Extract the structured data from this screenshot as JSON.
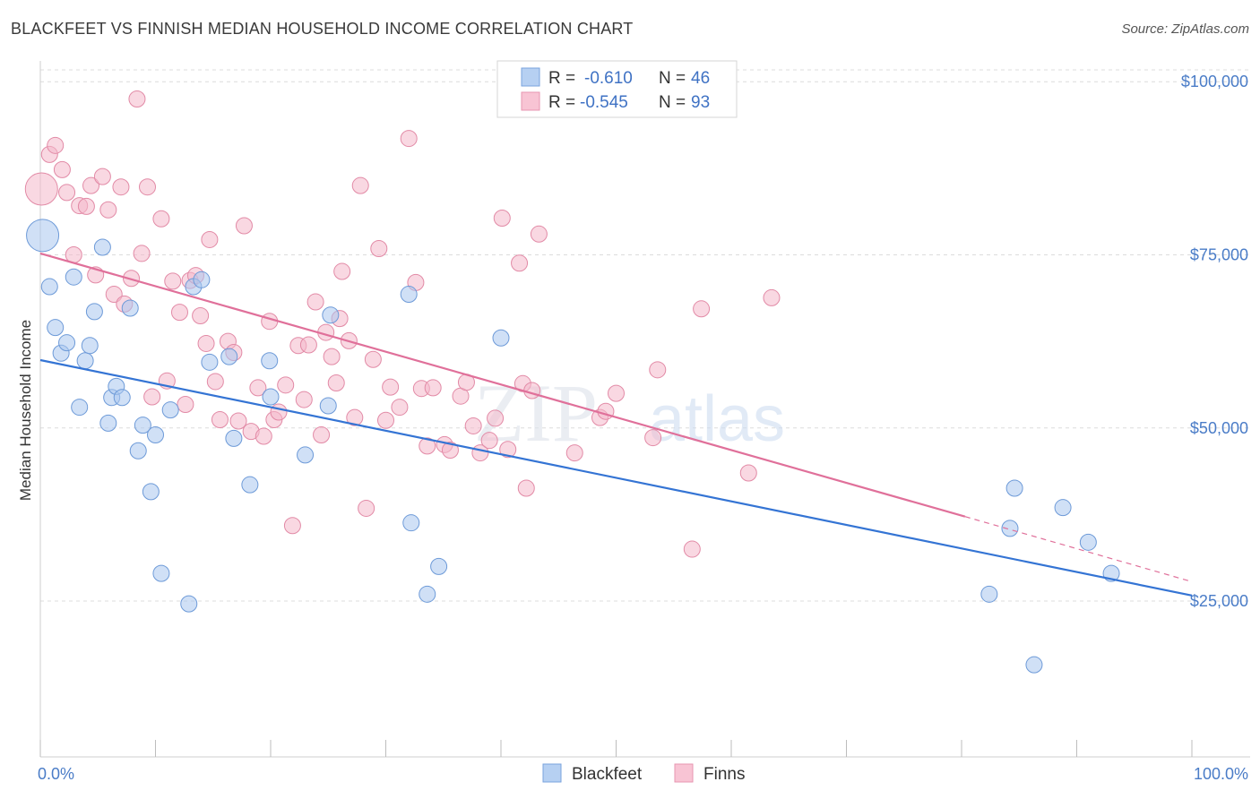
{
  "title": "BLACKFEET VS FINNISH MEDIAN HOUSEHOLD INCOME CORRELATION CHART",
  "source": "Source: ZipAtlas.com",
  "watermark": "ZIPatlas",
  "colors": {
    "blue_fill": "#a9c6ef",
    "blue_stroke": "#6d9ad8",
    "blue_line": "#3474d4",
    "pink_fill": "#f4b8cb",
    "pink_stroke": "#e28aa6",
    "pink_line": "#e0709a",
    "grid": "#dcdcdc",
    "tick_text": "#4a7cc7"
  },
  "legend": {
    "rows": [
      {
        "r_label": "R =",
        "r_value": "-0.610",
        "n_label": "N =",
        "n_value": "46"
      },
      {
        "r_label": "R =",
        "r_value": "-0.545",
        "n_label": "N =",
        "n_value": "93"
      }
    ]
  },
  "chart_data": {
    "type": "scatter",
    "title": "BLACKFEET VS FINNISH MEDIAN HOUSEHOLD INCOME CORRELATION CHART",
    "xlabel": "",
    "ylabel": "Median Household Income",
    "xlim": [
      0,
      100
    ],
    "ylim": [
      2500,
      103000
    ],
    "x_tick_labels": [
      "0.0%",
      "100.0%"
    ],
    "y_ticks": [
      25000,
      50000,
      75000,
      100000
    ],
    "y_tick_labels": [
      "$25,000",
      "$50,000",
      "$75,000",
      "$100,000"
    ],
    "grid": true,
    "legend_position": "top-center",
    "series": [
      {
        "name": "Blackfeet",
        "r": -0.61,
        "n": 46,
        "trend": {
          "x0": 0,
          "y0": 59800,
          "x1": 100,
          "y1": 25800
        },
        "points": [
          [
            0.2,
            77800,
            18
          ],
          [
            0.8,
            70400,
            9
          ],
          [
            1.3,
            64500,
            9
          ],
          [
            1.8,
            60800,
            9
          ],
          [
            2.3,
            62300,
            9
          ],
          [
            2.9,
            71800,
            9
          ],
          [
            3.4,
            53000,
            9
          ],
          [
            3.9,
            59700,
            9
          ],
          [
            4.3,
            61900,
            9
          ],
          [
            4.7,
            66800,
            9
          ],
          [
            5.4,
            76100,
            9
          ],
          [
            5.9,
            50700,
            9
          ],
          [
            6.2,
            54400,
            9
          ],
          [
            6.6,
            56000,
            9
          ],
          [
            7.1,
            54400,
            9
          ],
          [
            7.8,
            67300,
            9
          ],
          [
            8.5,
            46700,
            9
          ],
          [
            8.9,
            50400,
            9
          ],
          [
            9.6,
            40800,
            9
          ],
          [
            10.0,
            49000,
            9
          ],
          [
            10.5,
            29000,
            9
          ],
          [
            11.3,
            52600,
            9
          ],
          [
            12.9,
            24600,
            9
          ],
          [
            13.3,
            70400,
            9
          ],
          [
            14.0,
            71400,
            9
          ],
          [
            14.7,
            59500,
            9
          ],
          [
            16.4,
            60300,
            9
          ],
          [
            16.8,
            48500,
            9
          ],
          [
            18.2,
            41800,
            9
          ],
          [
            19.9,
            59700,
            9
          ],
          [
            20.0,
            54500,
            9
          ],
          [
            23.0,
            46100,
            9
          ],
          [
            25.0,
            53200,
            9
          ],
          [
            25.2,
            66300,
            9
          ],
          [
            32.0,
            69300,
            9
          ],
          [
            32.2,
            36300,
            9
          ],
          [
            33.6,
            26000,
            9
          ],
          [
            34.6,
            30000,
            9
          ],
          [
            40.0,
            63000,
            9
          ],
          [
            82.4,
            26000,
            9
          ],
          [
            86.3,
            15800,
            9
          ],
          [
            84.2,
            35500,
            9
          ],
          [
            84.6,
            41300,
            9
          ],
          [
            88.8,
            38500,
            9
          ],
          [
            91.0,
            33500,
            9
          ],
          [
            93.0,
            29000,
            9
          ]
        ]
      },
      {
        "name": "Finns",
        "r": -0.545,
        "n": 93,
        "trend": {
          "x0": 0,
          "y0": 75200,
          "x1": 80.3,
          "y1": 37200,
          "dash_x1": 100,
          "dash_y1": 27800
        },
        "points": [
          [
            0.1,
            84500,
            18
          ],
          [
            0.8,
            89500,
            9
          ],
          [
            1.3,
            90800,
            9
          ],
          [
            1.9,
            87300,
            9
          ],
          [
            2.3,
            84000,
            9
          ],
          [
            2.9,
            75000,
            9
          ],
          [
            3.4,
            82100,
            9
          ],
          [
            4.0,
            82000,
            9
          ],
          [
            4.4,
            85000,
            9
          ],
          [
            4.8,
            72100,
            9
          ],
          [
            5.4,
            86300,
            9
          ],
          [
            5.9,
            81500,
            9
          ],
          [
            6.4,
            69300,
            9
          ],
          [
            7.0,
            84800,
            9
          ],
          [
            7.3,
            67900,
            9
          ],
          [
            7.9,
            71600,
            9
          ],
          [
            8.4,
            97500,
            9
          ],
          [
            8.8,
            75200,
            9
          ],
          [
            9.3,
            84800,
            9
          ],
          [
            9.7,
            54500,
            9
          ],
          [
            10.5,
            80200,
            9
          ],
          [
            11.0,
            56800,
            9
          ],
          [
            11.5,
            71200,
            9
          ],
          [
            12.1,
            66700,
            9
          ],
          [
            12.6,
            53400,
            9
          ],
          [
            13.0,
            71300,
            9
          ],
          [
            13.5,
            72000,
            9
          ],
          [
            13.9,
            66200,
            9
          ],
          [
            14.4,
            62200,
            9
          ],
          [
            14.7,
            77200,
            9
          ],
          [
            15.2,
            56700,
            9
          ],
          [
            15.6,
            51200,
            9
          ],
          [
            16.3,
            62500,
            9
          ],
          [
            16.8,
            60900,
            9
          ],
          [
            17.2,
            51000,
            9
          ],
          [
            17.7,
            79200,
            9
          ],
          [
            18.3,
            49500,
            9
          ],
          [
            18.9,
            55800,
            9
          ],
          [
            19.4,
            48800,
            9
          ],
          [
            19.9,
            65400,
            9
          ],
          [
            20.3,
            51200,
            9
          ],
          [
            20.7,
            52300,
            9
          ],
          [
            21.3,
            56200,
            9
          ],
          [
            21.9,
            35900,
            9
          ],
          [
            22.4,
            61900,
            9
          ],
          [
            22.9,
            54100,
            9
          ],
          [
            23.3,
            62000,
            9
          ],
          [
            23.9,
            68200,
            9
          ],
          [
            24.4,
            49000,
            9
          ],
          [
            24.8,
            63800,
            9
          ],
          [
            25.3,
            60300,
            9
          ],
          [
            25.7,
            56500,
            9
          ],
          [
            26.2,
            72600,
            9
          ],
          [
            26.8,
            62600,
            9
          ],
          [
            27.3,
            51500,
            9
          ],
          [
            27.8,
            85000,
            9
          ],
          [
            28.3,
            38400,
            9
          ],
          [
            28.9,
            59900,
            9
          ],
          [
            29.4,
            75900,
            9
          ],
          [
            30.0,
            51100,
            9
          ],
          [
            30.4,
            55900,
            9
          ],
          [
            31.2,
            53000,
            9
          ],
          [
            32.0,
            91800,
            9
          ],
          [
            32.6,
            71000,
            9
          ],
          [
            33.1,
            55700,
            9
          ],
          [
            33.6,
            47400,
            9
          ],
          [
            34.1,
            55800,
            9
          ],
          [
            35.1,
            47600,
            9
          ],
          [
            35.6,
            46800,
            9
          ],
          [
            36.5,
            54600,
            9
          ],
          [
            37.0,
            56600,
            9
          ],
          [
            37.6,
            50300,
            9
          ],
          [
            38.2,
            46400,
            9
          ],
          [
            39.0,
            48200,
            9
          ],
          [
            39.5,
            51400,
            9
          ],
          [
            40.1,
            80300,
            9
          ],
          [
            40.6,
            46900,
            9
          ],
          [
            41.6,
            73800,
            9
          ],
          [
            41.9,
            56400,
            9
          ],
          [
            42.2,
            41300,
            9
          ],
          [
            42.7,
            55400,
            9
          ],
          [
            43.3,
            78000,
            9
          ],
          [
            46.4,
            46400,
            9
          ],
          [
            48.6,
            51500,
            9
          ],
          [
            49.1,
            52400,
            9
          ],
          [
            50.0,
            55000,
            9
          ],
          [
            53.2,
            48600,
            9
          ],
          [
            53.6,
            58400,
            9
          ],
          [
            56.6,
            32500,
            9
          ],
          [
            57.4,
            67200,
            9
          ],
          [
            61.5,
            43500,
            9
          ],
          [
            63.5,
            68800,
            9
          ],
          [
            26.0,
            65800,
            9
          ]
        ]
      }
    ]
  },
  "bottom_legend": {
    "items": [
      {
        "label": "Blackfeet"
      },
      {
        "label": "Finns"
      }
    ]
  }
}
